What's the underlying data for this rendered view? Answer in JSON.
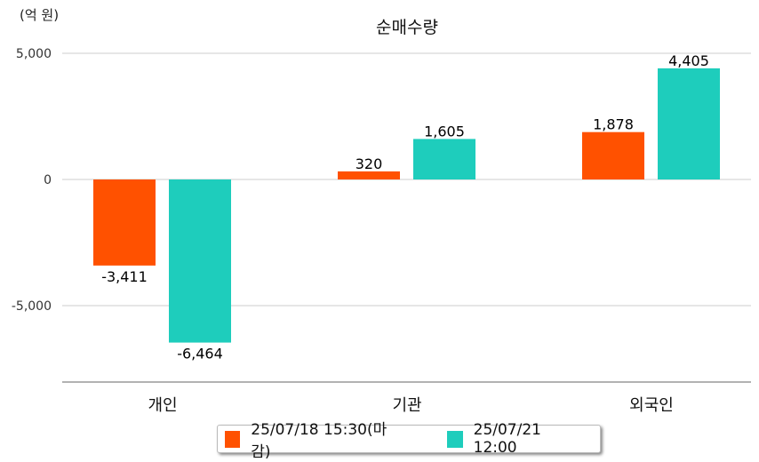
{
  "chart_data": {
    "type": "bar",
    "title": "순매수량",
    "unit_label": "(억 원)",
    "categories": [
      "개인",
      "기관",
      "외국인"
    ],
    "series": [
      {
        "name": "25/07/18 15:30(마감)",
        "color": "#ff5100",
        "values": [
          -3411,
          320,
          1878
        ],
        "labels": [
          "-3,411",
          "320",
          "1,878"
        ]
      },
      {
        "name": "25/07/21 12:00",
        "color": "#1ecdbc",
        "values": [
          -6464,
          1605,
          4405
        ],
        "labels": [
          "-6,464",
          "1,605",
          "4,405"
        ]
      }
    ],
    "yticks": [
      5000,
      0,
      -5000
    ],
    "ytick_labels": [
      "5,000",
      "0",
      "-5,000"
    ],
    "ylim": [
      -8000,
      5000
    ],
    "grid": true,
    "legend": "bottom"
  }
}
